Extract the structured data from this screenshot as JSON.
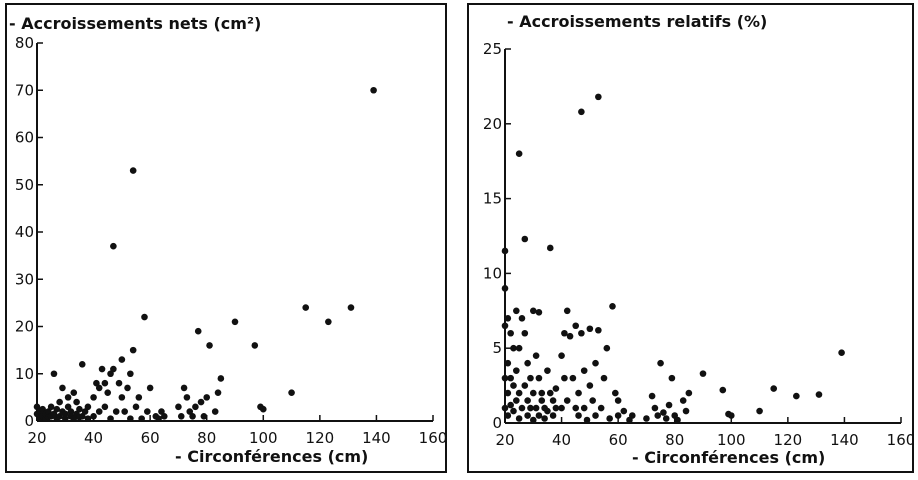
{
  "chart_data": [
    {
      "type": "scatter",
      "title": "",
      "ylabel": "- Accroissements nets (cm²)",
      "xlabel": "- Circonférences (cm)",
      "xlim": [
        20,
        160
      ],
      "ylim": [
        0,
        80
      ],
      "xticks": [
        20,
        40,
        60,
        80,
        100,
        120,
        140,
        160
      ],
      "yticks": [
        0,
        10,
        20,
        30,
        40,
        50,
        60,
        70,
        80
      ],
      "grid": false,
      "series": [
        {
          "points": [
            [
              20,
              3
            ],
            [
              20,
              1.5
            ],
            [
              21,
              2
            ],
            [
              21,
              0.5
            ],
            [
              22,
              1
            ],
            [
              22,
              2.5
            ],
            [
              23,
              0.5
            ],
            [
              23,
              1.5
            ],
            [
              24,
              2
            ],
            [
              24,
              0.8
            ],
            [
              25,
              1
            ],
            [
              25,
              3
            ],
            [
              26,
              10
            ],
            [
              26,
              1.5
            ],
            [
              27,
              0.5
            ],
            [
              27,
              2.5
            ],
            [
              28,
              4
            ],
            [
              28,
              1
            ],
            [
              29,
              7
            ],
            [
              29,
              2
            ],
            [
              30,
              0.5
            ],
            [
              30,
              1.5
            ],
            [
              31,
              3
            ],
            [
              31,
              5
            ],
            [
              32,
              2
            ],
            [
              32,
              1
            ],
            [
              33,
              6
            ],
            [
              33,
              0.5
            ],
            [
              34,
              4
            ],
            [
              34,
              1.5
            ],
            [
              35,
              2.5
            ],
            [
              35,
              0.8
            ],
            [
              36,
              12
            ],
            [
              36,
              1
            ],
            [
              37,
              2
            ],
            [
              38,
              0.5
            ],
            [
              38,
              3
            ],
            [
              40,
              5
            ],
            [
              40,
              1
            ],
            [
              41,
              8
            ],
            [
              42,
              2
            ],
            [
              42,
              7
            ],
            [
              43,
              11
            ],
            [
              44,
              8
            ],
            [
              44,
              3
            ],
            [
              45,
              6
            ],
            [
              46,
              0.5
            ],
            [
              46,
              10
            ],
            [
              47,
              11
            ],
            [
              47,
              37
            ],
            [
              48,
              2
            ],
            [
              49,
              8
            ],
            [
              50,
              5
            ],
            [
              50,
              13
            ],
            [
              51,
              2
            ],
            [
              52,
              7
            ],
            [
              53,
              10
            ],
            [
              53,
              0.5
            ],
            [
              54,
              15
            ],
            [
              54,
              53
            ],
            [
              55,
              3
            ],
            [
              56,
              5
            ],
            [
              57,
              0.5
            ],
            [
              58,
              22
            ],
            [
              59,
              2
            ],
            [
              60,
              7
            ],
            [
              62,
              1
            ],
            [
              63,
              0.5
            ],
            [
              64,
              2
            ],
            [
              65,
              1
            ],
            [
              70,
              3
            ],
            [
              71,
              1
            ],
            [
              72,
              7
            ],
            [
              73,
              5
            ],
            [
              74,
              2
            ],
            [
              75,
              1
            ],
            [
              76,
              3
            ],
            [
              77,
              19
            ],
            [
              78,
              4
            ],
            [
              79,
              1
            ],
            [
              80,
              5
            ],
            [
              81,
              16
            ],
            [
              83,
              2
            ],
            [
              84,
              6
            ],
            [
              85,
              9
            ],
            [
              90,
              21
            ],
            [
              97,
              16
            ],
            [
              99,
              3
            ],
            [
              100,
              2.5
            ],
            [
              110,
              6
            ],
            [
              115,
              24
            ],
            [
              123,
              21
            ],
            [
              131,
              24
            ],
            [
              139,
              70
            ]
          ]
        }
      ]
    },
    {
      "type": "scatter",
      "title": "",
      "ylabel": "- Accroissements relatifs (%)",
      "xlabel": "- Circonférences (cm)",
      "xlim": [
        20,
        160
      ],
      "ylim": [
        0,
        25
      ],
      "xticks": [
        20,
        40,
        60,
        80,
        100,
        120,
        140,
        160
      ],
      "yticks": [
        0,
        5,
        10,
        15,
        20,
        25
      ],
      "grid": false,
      "series": [
        {
          "points": [
            [
              20,
              11.5
            ],
            [
              20,
              9
            ],
            [
              20,
              6.5
            ],
            [
              20,
              3
            ],
            [
              20,
              1
            ],
            [
              21,
              7
            ],
            [
              21,
              4
            ],
            [
              21,
              2
            ],
            [
              21,
              0.5
            ],
            [
              22,
              6
            ],
            [
              22,
              3
            ],
            [
              22,
              1.2
            ],
            [
              23,
              5
            ],
            [
              23,
              2.5
            ],
            [
              23,
              0.8
            ],
            [
              24,
              7.5
            ],
            [
              24,
              3.5
            ],
            [
              24,
              1.5
            ],
            [
              25,
              18
            ],
            [
              25,
              5
            ],
            [
              25,
              2
            ],
            [
              25,
              0.3
            ],
            [
              26,
              7
            ],
            [
              26,
              1
            ],
            [
              27,
              12.3
            ],
            [
              27,
              6
            ],
            [
              27,
              2.5
            ],
            [
              28,
              4
            ],
            [
              28,
              1.5
            ],
            [
              28,
              0.5
            ],
            [
              29,
              3
            ],
            [
              29,
              1
            ],
            [
              30,
              7.5
            ],
            [
              30,
              2
            ],
            [
              30,
              0.2
            ],
            [
              31,
              4.5
            ],
            [
              31,
              1
            ],
            [
              32,
              7.4
            ],
            [
              32,
              3
            ],
            [
              32,
              0.5
            ],
            [
              33,
              2
            ],
            [
              33,
              1.5
            ],
            [
              34,
              1
            ],
            [
              34,
              0.3
            ],
            [
              35,
              3.5
            ],
            [
              35,
              0.8
            ],
            [
              36,
              11.7
            ],
            [
              36,
              2
            ],
            [
              37,
              1.5
            ],
            [
              37,
              0.5
            ],
            [
              38,
              1
            ],
            [
              38,
              2.3
            ],
            [
              40,
              4.5
            ],
            [
              40,
              1
            ],
            [
              41,
              6
            ],
            [
              41,
              3
            ],
            [
              42,
              7.5
            ],
            [
              42,
              1.5
            ],
            [
              43,
              5.8
            ],
            [
              44,
              3
            ],
            [
              45,
              6.5
            ],
            [
              45,
              1
            ],
            [
              46,
              0.5
            ],
            [
              46,
              2
            ],
            [
              47,
              20.8
            ],
            [
              47,
              6
            ],
            [
              48,
              3.5
            ],
            [
              48,
              1
            ],
            [
              49,
              0.2
            ],
            [
              50,
              6.3
            ],
            [
              50,
              2.5
            ],
            [
              51,
              1.5
            ],
            [
              52,
              4
            ],
            [
              52,
              0.5
            ],
            [
              53,
              21.8
            ],
            [
              53,
              6.2
            ],
            [
              54,
              1
            ],
            [
              55,
              3
            ],
            [
              56,
              5
            ],
            [
              57,
              0.3
            ],
            [
              58,
              7.8
            ],
            [
              59,
              2
            ],
            [
              60,
              1.5
            ],
            [
              60,
              0.5
            ],
            [
              62,
              0.8
            ],
            [
              64,
              0.2
            ],
            [
              65,
              0.5
            ],
            [
              70,
              0.3
            ],
            [
              72,
              1.8
            ],
            [
              73,
              1
            ],
            [
              74,
              0.5
            ],
            [
              75,
              4
            ],
            [
              76,
              0.7
            ],
            [
              77,
              0.3
            ],
            [
              78,
              1.2
            ],
            [
              79,
              3
            ],
            [
              80,
              0.5
            ],
            [
              81,
              0.2
            ],
            [
              83,
              1.5
            ],
            [
              84,
              0.8
            ],
            [
              85,
              2
            ],
            [
              90,
              3.3
            ],
            [
              97,
              2.2
            ],
            [
              99,
              0.6
            ],
            [
              100,
              0.5
            ],
            [
              110,
              0.8
            ],
            [
              115,
              2.3
            ],
            [
              123,
              1.8
            ],
            [
              131,
              1.9
            ],
            [
              139,
              4.7
            ]
          ]
        }
      ]
    }
  ]
}
